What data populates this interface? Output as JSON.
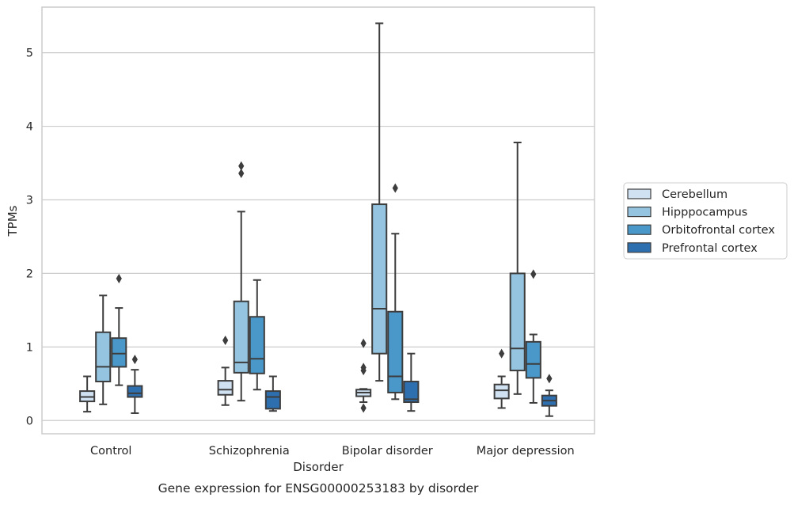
{
  "chart_data": {
    "type": "box",
    "caption": "Gene expression for ENSG00000253183 by disorder",
    "xlabel": "Disorder",
    "ylabel": "TPMs",
    "ylim": [
      -0.18,
      5.62
    ],
    "yticks": [
      0,
      1,
      2,
      3,
      4,
      5
    ],
    "grid": "horizontal",
    "legend_position": "right",
    "categories": [
      "Control",
      "Schizophrenia",
      "Bipolar disorder",
      "Major depression"
    ],
    "series": [
      {
        "name": "Cerebellum",
        "color": "#d0e1f2",
        "boxes": [
          {
            "whisker_low": 0.12,
            "q1": 0.26,
            "median": 0.32,
            "q3": 0.4,
            "whisker_high": 0.6,
            "outliers": []
          },
          {
            "whisker_low": 0.21,
            "q1": 0.35,
            "median": 0.42,
            "q3": 0.54,
            "whisker_high": 0.72,
            "outliers": [
              1.09
            ]
          },
          {
            "whisker_low": 0.25,
            "q1": 0.33,
            "median": 0.38,
            "q3": 0.42,
            "whisker_high": 0.43,
            "outliers": [
              0.17,
              0.68,
              0.72,
              1.05
            ]
          },
          {
            "whisker_low": 0.17,
            "q1": 0.3,
            "median": 0.41,
            "q3": 0.49,
            "whisker_high": 0.6,
            "outliers": [
              0.91
            ]
          }
        ]
      },
      {
        "name": "Hipppocampus",
        "color": "#94c4df",
        "boxes": [
          {
            "whisker_low": 0.22,
            "q1": 0.53,
            "median": 0.73,
            "q3": 1.2,
            "whisker_high": 1.7,
            "outliers": []
          },
          {
            "whisker_low": 0.27,
            "q1": 0.65,
            "median": 0.79,
            "q3": 1.62,
            "whisker_high": 2.84,
            "outliers": [
              3.36,
              3.46
            ]
          },
          {
            "whisker_low": 0.54,
            "q1": 0.91,
            "median": 1.52,
            "q3": 2.94,
            "whisker_high": 5.4,
            "outliers": []
          },
          {
            "whisker_low": 0.36,
            "q1": 0.68,
            "median": 0.98,
            "q3": 2.0,
            "whisker_high": 3.78,
            "outliers": []
          }
        ]
      },
      {
        "name": "Orbitofrontal cortex",
        "color": "#4a98c9",
        "boxes": [
          {
            "whisker_low": 0.48,
            "q1": 0.73,
            "median": 0.91,
            "q3": 1.12,
            "whisker_high": 1.53,
            "outliers": [
              1.93
            ]
          },
          {
            "whisker_low": 0.42,
            "q1": 0.64,
            "median": 0.84,
            "q3": 1.41,
            "whisker_high": 1.91,
            "outliers": []
          },
          {
            "whisker_low": 0.29,
            "q1": 0.38,
            "median": 0.6,
            "q3": 1.48,
            "whisker_high": 2.54,
            "outliers": [
              3.16
            ]
          },
          {
            "whisker_low": 0.24,
            "q1": 0.58,
            "median": 0.77,
            "q3": 1.07,
            "whisker_high": 1.17,
            "outliers": [
              1.99
            ]
          }
        ]
      },
      {
        "name": "Prefrontal cortex",
        "color": "#2e6fb0",
        "boxes": [
          {
            "whisker_low": 0.1,
            "q1": 0.32,
            "median": 0.37,
            "q3": 0.47,
            "whisker_high": 0.69,
            "outliers": [
              0.83
            ]
          },
          {
            "whisker_low": 0.13,
            "q1": 0.16,
            "median": 0.32,
            "q3": 0.4,
            "whisker_high": 0.6,
            "outliers": []
          },
          {
            "whisker_low": 0.13,
            "q1": 0.25,
            "median": 0.29,
            "q3": 0.53,
            "whisker_high": 0.91,
            "outliers": []
          },
          {
            "whisker_low": 0.06,
            "q1": 0.2,
            "median": 0.27,
            "q3": 0.34,
            "whisker_high": 0.41,
            "outliers": [
              0.57
            ]
          }
        ]
      }
    ]
  }
}
